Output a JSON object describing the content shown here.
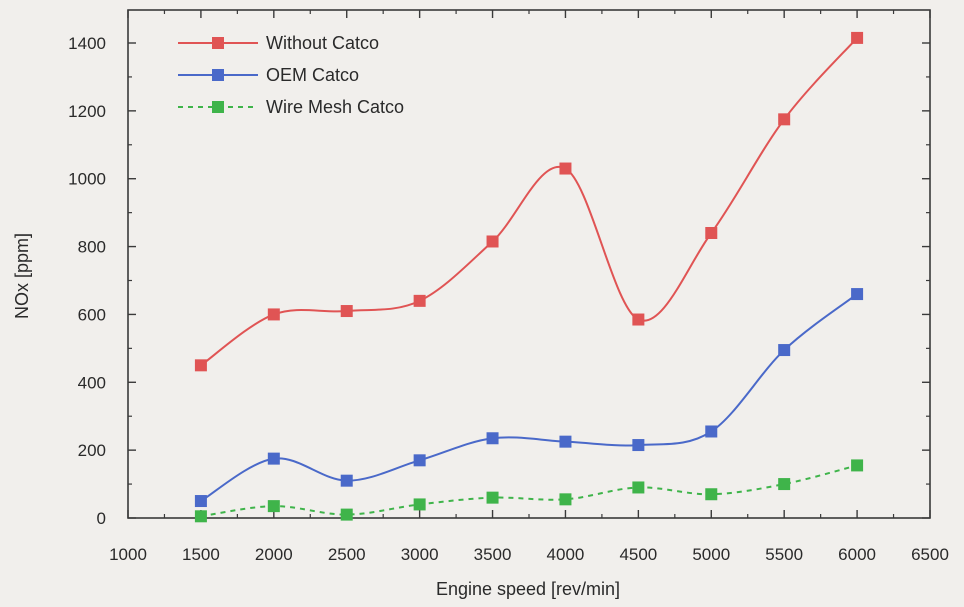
{
  "chart_data": {
    "type": "line",
    "title": "",
    "xlabel": "Engine speed [rev/min]",
    "ylabel": "NOx [ppm]",
    "xlim": [
      1000,
      6500
    ],
    "ylim": [
      0,
      1400
    ],
    "x_ticks": [
      "1000",
      "1500",
      "2000",
      "2500",
      "3000",
      "3500",
      "4000",
      "4500",
      "5000",
      "5500",
      "6000",
      "6500"
    ],
    "y_ticks": [
      "0",
      "200",
      "400",
      "600",
      "800",
      "1000",
      "1200",
      "1400"
    ],
    "x": [
      1500,
      2000,
      2500,
      3000,
      3500,
      4000,
      4500,
      5000,
      5500,
      6000
    ],
    "legend_position": "top-left",
    "grid": false,
    "series": [
      {
        "name": "Without Catco",
        "color": "#e05454",
        "dash": "solid",
        "values": [
          450,
          600,
          610,
          640,
          815,
          1030,
          585,
          840,
          1175,
          1415
        ]
      },
      {
        "name": "OEM Catco",
        "color": "#4a69c9",
        "dash": "solid",
        "values": [
          50,
          175,
          110,
          170,
          235,
          225,
          215,
          255,
          495,
          660
        ]
      },
      {
        "name": "Wire Mesh Catco",
        "color": "#3fb44a",
        "dash": "dashed",
        "values": [
          5,
          35,
          10,
          40,
          60,
          55,
          90,
          70,
          100,
          155
        ]
      }
    ]
  }
}
